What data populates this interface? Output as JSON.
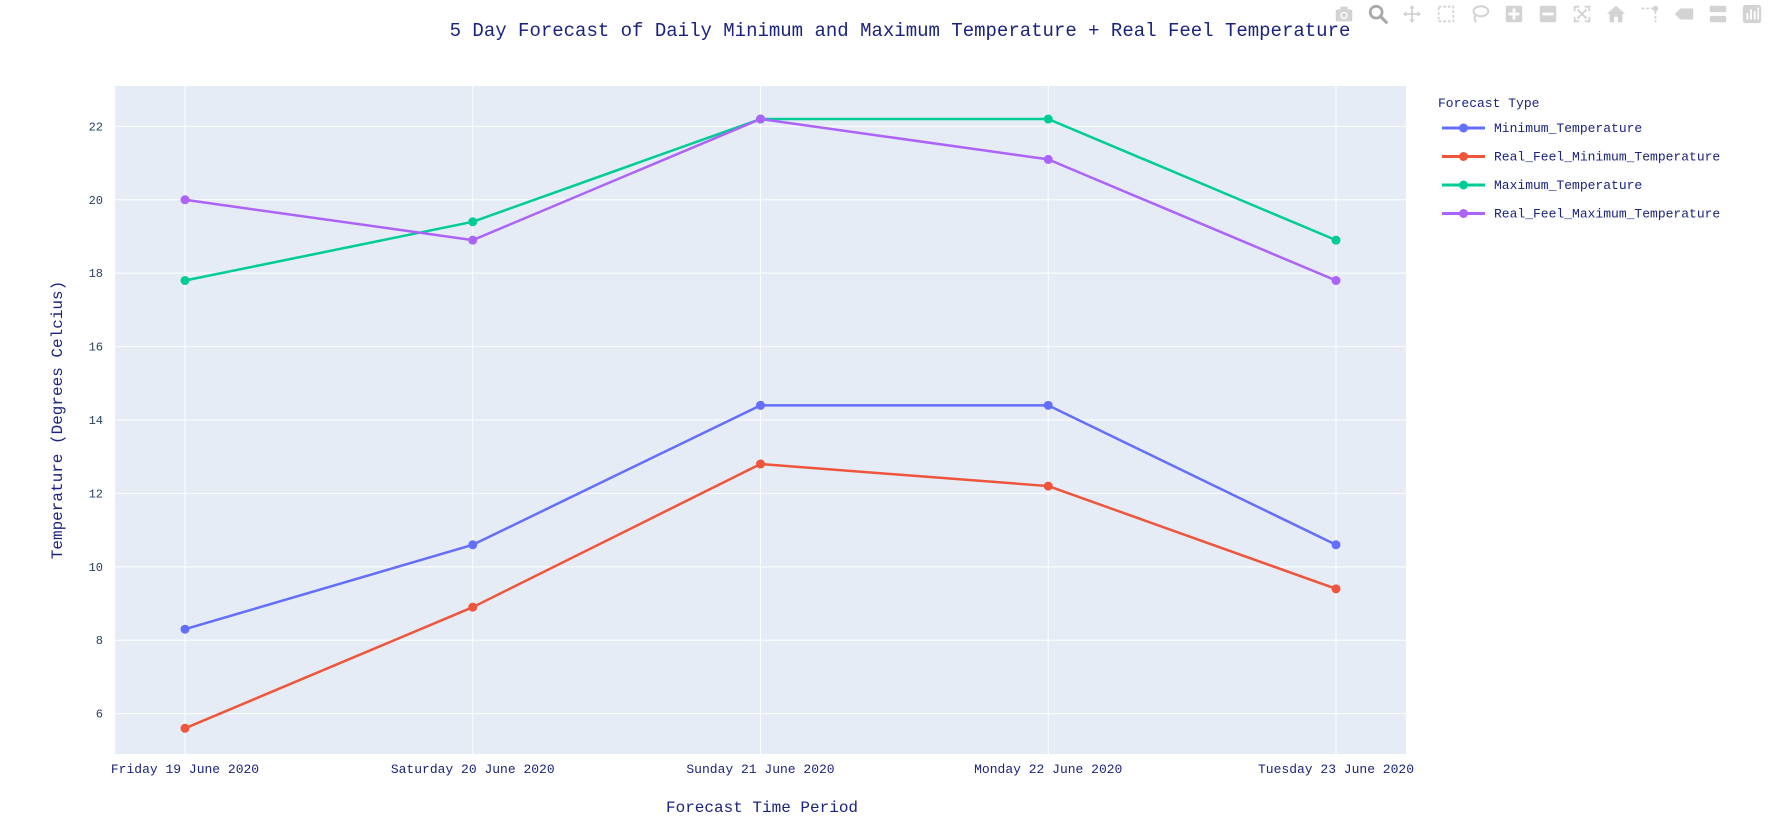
{
  "mode_bar": [
    {
      "name": "camera-icon",
      "icon": "camera",
      "color": "#d3d3d3"
    },
    {
      "name": "zoom-icon",
      "icon": "zoom",
      "color": "#a9a9a9"
    },
    {
      "name": "pan-icon",
      "icon": "pan",
      "color": "#d3d3d3"
    },
    {
      "name": "box-select-icon",
      "icon": "boxselect",
      "color": "#d3d3d3"
    },
    {
      "name": "lasso-select-icon",
      "icon": "lasso",
      "color": "#d3d3d3"
    },
    {
      "name": "zoom-in-icon",
      "icon": "zoomin",
      "color": "#d3d3d3"
    },
    {
      "name": "zoom-out-icon",
      "icon": "zoomout",
      "color": "#d3d3d3"
    },
    {
      "name": "autoscale-icon",
      "icon": "autoscale",
      "color": "#d3d3d3"
    },
    {
      "name": "reset-axes-icon",
      "icon": "home",
      "color": "#d3d3d3"
    },
    {
      "name": "spike-lines-icon",
      "icon": "spikes",
      "color": "#d3d3d3"
    },
    {
      "name": "hover-closest-icon",
      "icon": "hoverclosest",
      "color": "#d3d3d3"
    },
    {
      "name": "hover-compare-icon",
      "icon": "hovercompare",
      "color": "#d3d3d3"
    },
    {
      "name": "plotly-logo-icon",
      "icon": "plotly",
      "color": "#d3d3d3"
    }
  ],
  "chart_data": {
    "type": "line",
    "title": "5 Day Forecast of Daily Minimum and Maximum Temperature + Real Feel Temperature",
    "xlabel": "Forecast Time Period",
    "ylabel": "Temperature (Degrees Celcius)",
    "categories": [
      "Friday 19 June 2020",
      "Saturday 20 June 2020",
      "Sunday 21 June 2020",
      "Monday 22 June 2020",
      "Tuesday 23 June 2020"
    ],
    "ylim": [
      4.9,
      23.1
    ],
    "yticks": [
      6,
      8,
      10,
      12,
      14,
      16,
      18,
      20,
      22
    ],
    "grid": true,
    "plot_bgcolor": "#e5ecf6",
    "font_color": "#2a3f5f",
    "title_color": "#1a237e",
    "legend": {
      "title": "Forecast Type",
      "placement": "right"
    },
    "series": [
      {
        "name": "Minimum_Temperature",
        "color": "#636efa",
        "values": [
          8.3,
          10.6,
          14.4,
          14.4,
          10.6
        ]
      },
      {
        "name": "Real_Feel_Minimum_Temperature",
        "color": "#ef553b",
        "values": [
          5.6,
          8.9,
          12.8,
          12.2,
          9.4
        ]
      },
      {
        "name": "Maximum_Temperature",
        "color": "#00cc96",
        "values": [
          17.8,
          19.4,
          22.2,
          22.2,
          18.9
        ]
      },
      {
        "name": "Real_Feel_Maximum_Temperature",
        "color": "#ab63fa",
        "values": [
          20.0,
          18.9,
          22.2,
          21.1,
          17.8
        ]
      }
    ]
  }
}
